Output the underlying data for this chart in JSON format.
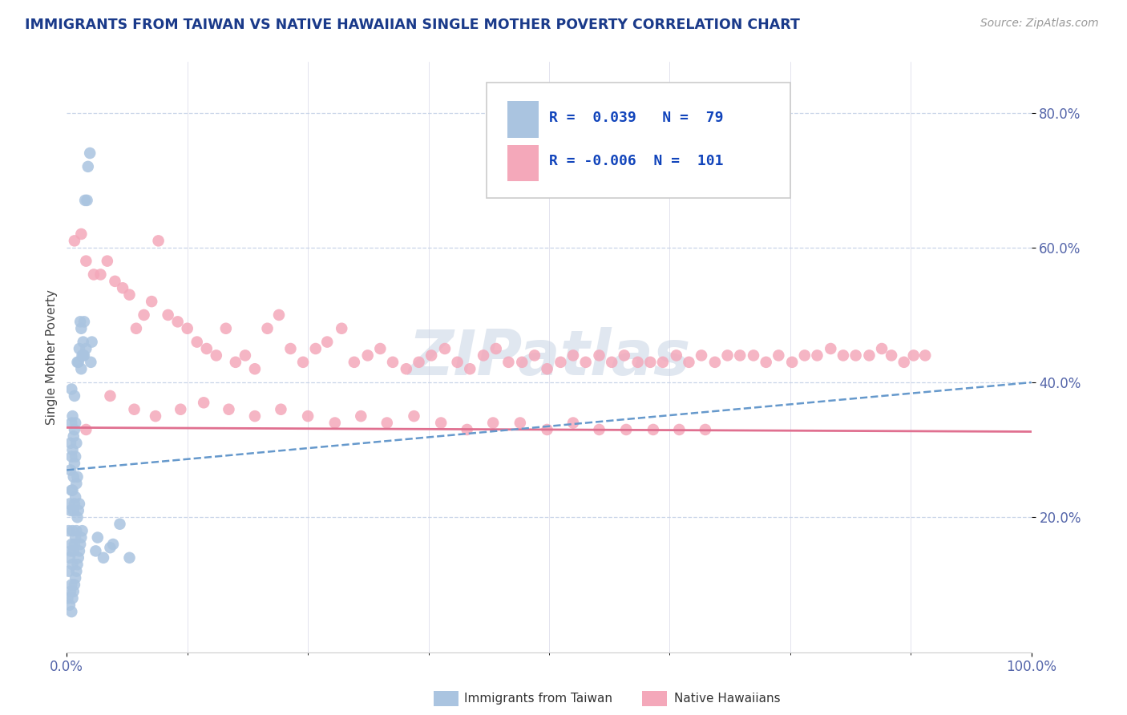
{
  "title": "IMMIGRANTS FROM TAIWAN VS NATIVE HAWAIIAN SINGLE MOTHER POVERTY CORRELATION CHART",
  "source_text": "Source: ZipAtlas.com",
  "ylabel": "Single Mother Poverty",
  "x_min": 0.0,
  "x_max": 1.0,
  "y_min": 0.0,
  "y_max": 0.875,
  "y_ticks": [
    0.2,
    0.4,
    0.6,
    0.8
  ],
  "y_tick_labels": [
    "20.0%",
    "40.0%",
    "60.0%",
    "80.0%"
  ],
  "legend_r1": "0.039",
  "legend_n1": "79",
  "legend_r2": "-0.006",
  "legend_n2": "101",
  "color_taiwan": "#aac4e0",
  "color_hawaii": "#f4a8ba",
  "trend_color_taiwan": "#6699cc",
  "trend_color_hawaii": "#e07090",
  "watermark": "ZIPatlas",
  "taiwan_x": [
    0.001,
    0.002,
    0.002,
    0.003,
    0.003,
    0.003,
    0.004,
    0.004,
    0.004,
    0.004,
    0.004,
    0.005,
    0.005,
    0.005,
    0.005,
    0.005,
    0.005,
    0.005,
    0.006,
    0.006,
    0.006,
    0.006,
    0.006,
    0.006,
    0.007,
    0.007,
    0.007,
    0.007,
    0.007,
    0.008,
    0.008,
    0.008,
    0.008,
    0.008,
    0.008,
    0.009,
    0.009,
    0.009,
    0.009,
    0.009,
    0.01,
    0.01,
    0.01,
    0.01,
    0.011,
    0.011,
    0.011,
    0.011,
    0.012,
    0.012,
    0.012,
    0.013,
    0.013,
    0.013,
    0.014,
    0.014,
    0.015,
    0.015,
    0.015,
    0.016,
    0.016,
    0.017,
    0.017,
    0.018,
    0.018,
    0.019,
    0.02,
    0.021,
    0.022,
    0.024,
    0.025,
    0.026,
    0.03,
    0.032,
    0.038,
    0.045,
    0.048,
    0.055,
    0.065
  ],
  "taiwan_y": [
    0.08,
    0.12,
    0.18,
    0.07,
    0.14,
    0.22,
    0.09,
    0.15,
    0.21,
    0.27,
    0.31,
    0.06,
    0.1,
    0.16,
    0.24,
    0.29,
    0.34,
    0.39,
    0.08,
    0.13,
    0.18,
    0.24,
    0.3,
    0.35,
    0.09,
    0.15,
    0.21,
    0.26,
    0.32,
    0.1,
    0.16,
    0.22,
    0.28,
    0.33,
    0.38,
    0.11,
    0.17,
    0.23,
    0.29,
    0.34,
    0.12,
    0.18,
    0.25,
    0.31,
    0.13,
    0.2,
    0.26,
    0.43,
    0.14,
    0.21,
    0.43,
    0.15,
    0.22,
    0.45,
    0.16,
    0.49,
    0.17,
    0.42,
    0.48,
    0.18,
    0.44,
    0.44,
    0.46,
    0.44,
    0.49,
    0.67,
    0.45,
    0.67,
    0.72,
    0.74,
    0.43,
    0.46,
    0.15,
    0.17,
    0.14,
    0.155,
    0.16,
    0.19,
    0.14
  ],
  "hawaii_x": [
    0.008,
    0.015,
    0.02,
    0.028,
    0.035,
    0.042,
    0.05,
    0.058,
    0.065,
    0.072,
    0.08,
    0.088,
    0.095,
    0.105,
    0.115,
    0.125,
    0.135,
    0.145,
    0.155,
    0.165,
    0.175,
    0.185,
    0.195,
    0.208,
    0.22,
    0.232,
    0.245,
    0.258,
    0.27,
    0.285,
    0.298,
    0.312,
    0.325,
    0.338,
    0.352,
    0.365,
    0.378,
    0.392,
    0.405,
    0.418,
    0.432,
    0.445,
    0.458,
    0.472,
    0.485,
    0.498,
    0.512,
    0.525,
    0.538,
    0.552,
    0.565,
    0.578,
    0.592,
    0.605,
    0.618,
    0.632,
    0.645,
    0.658,
    0.672,
    0.685,
    0.698,
    0.712,
    0.725,
    0.738,
    0.752,
    0.765,
    0.778,
    0.792,
    0.805,
    0.818,
    0.832,
    0.845,
    0.855,
    0.868,
    0.878,
    0.89,
    0.02,
    0.045,
    0.07,
    0.092,
    0.118,
    0.142,
    0.168,
    0.195,
    0.222,
    0.25,
    0.278,
    0.305,
    0.332,
    0.36,
    0.388,
    0.415,
    0.442,
    0.47,
    0.498,
    0.525,
    0.552,
    0.58,
    0.608,
    0.635,
    0.662
  ],
  "hawaii_y": [
    0.61,
    0.62,
    0.58,
    0.56,
    0.56,
    0.58,
    0.55,
    0.54,
    0.53,
    0.48,
    0.5,
    0.52,
    0.61,
    0.5,
    0.49,
    0.48,
    0.46,
    0.45,
    0.44,
    0.48,
    0.43,
    0.44,
    0.42,
    0.48,
    0.5,
    0.45,
    0.43,
    0.45,
    0.46,
    0.48,
    0.43,
    0.44,
    0.45,
    0.43,
    0.42,
    0.43,
    0.44,
    0.45,
    0.43,
    0.42,
    0.44,
    0.45,
    0.43,
    0.43,
    0.44,
    0.42,
    0.43,
    0.44,
    0.43,
    0.44,
    0.43,
    0.44,
    0.43,
    0.43,
    0.43,
    0.44,
    0.43,
    0.44,
    0.43,
    0.44,
    0.44,
    0.44,
    0.43,
    0.44,
    0.43,
    0.44,
    0.44,
    0.45,
    0.44,
    0.44,
    0.44,
    0.45,
    0.44,
    0.43,
    0.44,
    0.44,
    0.33,
    0.38,
    0.36,
    0.35,
    0.36,
    0.37,
    0.36,
    0.35,
    0.36,
    0.35,
    0.34,
    0.35,
    0.34,
    0.35,
    0.34,
    0.33,
    0.34,
    0.34,
    0.33,
    0.34,
    0.33,
    0.33,
    0.33,
    0.33,
    0.33
  ],
  "hawaii_trend_y0": 0.333,
  "hawaii_trend_y1": 0.327,
  "taiwan_trend_x0": 0.0,
  "taiwan_trend_y0": 0.27,
  "taiwan_trend_x1": 1.0,
  "taiwan_trend_y1": 0.4
}
